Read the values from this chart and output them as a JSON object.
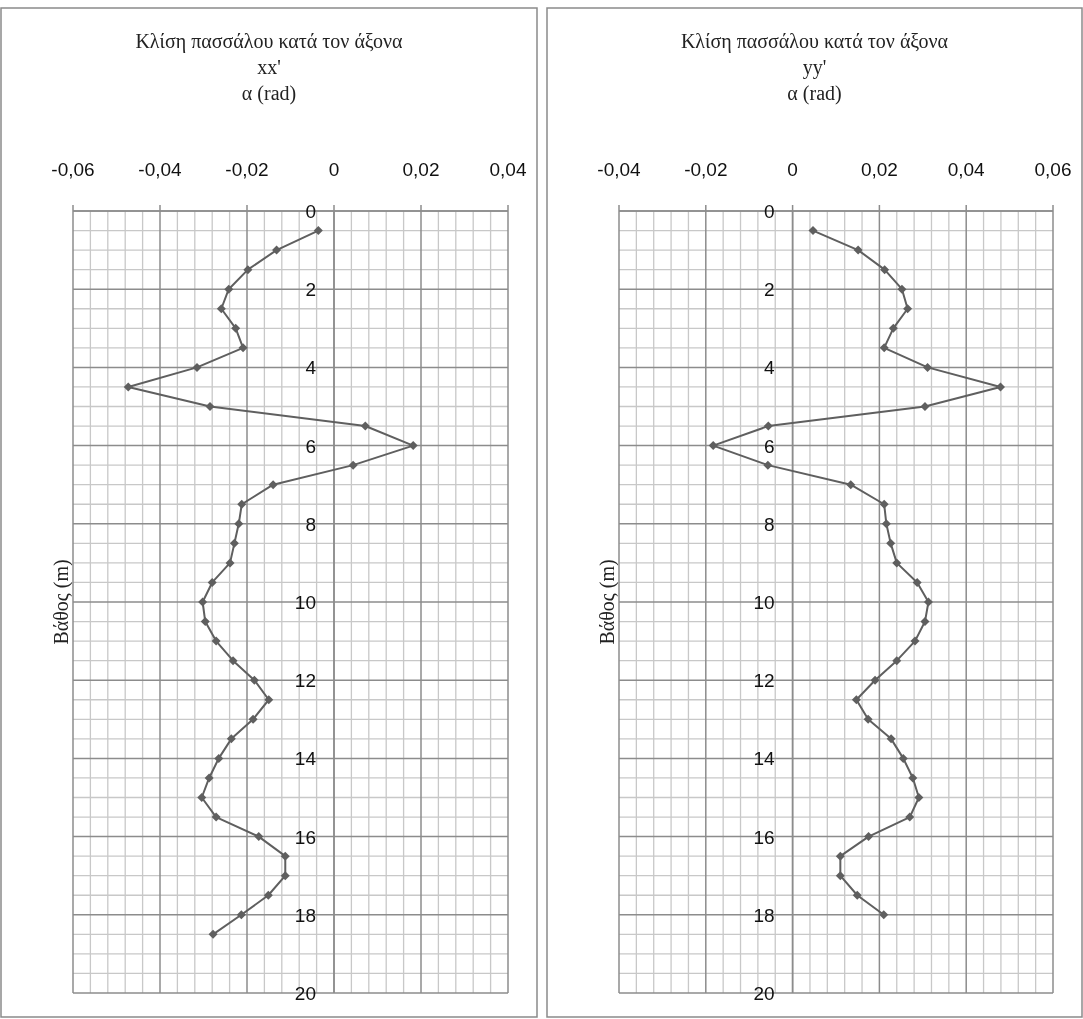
{
  "chart_data": [
    {
      "type": "line",
      "title": "Κλίση πασσάλου κατά τον άξονα xx'",
      "xlabel": "α (rad)",
      "ylabel": "Βάθος (m)",
      "xlim": [
        -0.06,
        0.04
      ],
      "xticks": [
        {
          "value": -0.06,
          "label": "-0,06"
        },
        {
          "value": -0.04,
          "label": "-0,04"
        },
        {
          "value": -0.02,
          "label": "-0,02"
        },
        0,
        {
          "value": 0.02,
          "label": "0,02"
        },
        {
          "value": 0.04,
          "label": "0,04"
        }
      ],
      "ylim": [
        20,
        0
      ],
      "yticks": [
        0,
        2,
        4,
        6,
        8,
        10,
        12,
        14,
        16,
        18,
        20
      ],
      "grid": true,
      "marker": "diamond",
      "line_style": "solid",
      "series": [
        {
          "color": "#5f5f5f",
          "x": [
            -0.0036,
            -0.0132,
            -0.0198,
            -0.0242,
            -0.0259,
            -0.0226,
            -0.0209,
            -0.0315,
            -0.0473,
            -0.0285,
            0.0072,
            0.0182,
            0.0044,
            -0.014,
            -0.0212,
            -0.0219,
            -0.0229,
            -0.0239,
            -0.028,
            -0.0302,
            -0.0296,
            -0.0271,
            -0.0232,
            -0.0183,
            -0.015,
            -0.0186,
            -0.0236,
            -0.0265,
            -0.0287,
            -0.0304,
            -0.0271,
            -0.0173,
            -0.0112,
            -0.0112,
            -0.0151,
            -0.0213,
            -0.0278
          ],
          "values": [
            0.5,
            1,
            1.5,
            2,
            2.5,
            3,
            3.5,
            4,
            4.5,
            5,
            5.5,
            6,
            6.5,
            7,
            7.5,
            8,
            8.5,
            9,
            9.5,
            10,
            10.5,
            11,
            11.5,
            12,
            12.5,
            13,
            13.5,
            14,
            14.5,
            15,
            15.5,
            16,
            16.5,
            17,
            17.5,
            18,
            18.5
          ]
        }
      ]
    },
    {
      "type": "line",
      "title": "Κλίση πασσάλου κατά τον άξονα yy'",
      "xlabel": "α (rad)",
      "ylabel": "Βάθος (m)",
      "xlim": [
        -0.04,
        0.06
      ],
      "xticks": [
        {
          "value": -0.04,
          "label": "-0,04"
        },
        {
          "value": -0.02,
          "label": "-0,02"
        },
        0,
        {
          "value": 0.02,
          "label": "0,02"
        },
        {
          "value": 0.04,
          "label": "0,04"
        },
        {
          "value": 0.06,
          "label": "0,06"
        }
      ],
      "ylim": [
        20,
        0
      ],
      "yticks": [
        0,
        2,
        4,
        6,
        8,
        10,
        12,
        14,
        16,
        18,
        20
      ],
      "grid": true,
      "marker": "diamond",
      "line_style": "solid",
      "series": [
        {
          "color": "#5f5f5f",
          "x": [
            0.0047,
            0.0151,
            0.0212,
            0.0252,
            0.0265,
            0.0232,
            0.0211,
            0.0311,
            0.0479,
            0.0305,
            -0.0056,
            -0.0183,
            -0.0057,
            0.0134,
            0.0211,
            0.0216,
            0.0226,
            0.024,
            0.0287,
            0.0313,
            0.0305,
            0.0282,
            0.024,
            0.019,
            0.0147,
            0.0174,
            0.0227,
            0.0255,
            0.0277,
            0.0291,
            0.027,
            0.0175,
            0.011,
            0.011,
            0.0149,
            0.021
          ],
          "values": [
            0.5,
            1,
            1.5,
            2,
            2.5,
            3,
            3.5,
            4,
            4.5,
            5,
            5.5,
            6,
            6.5,
            7,
            7.5,
            8,
            8.5,
            9,
            9.5,
            10,
            10.5,
            11,
            11.5,
            12,
            12.5,
            13,
            13.5,
            14,
            14.5,
            15,
            15.5,
            16,
            16.5,
            17,
            17.5,
            18
          ]
        }
      ]
    }
  ]
}
